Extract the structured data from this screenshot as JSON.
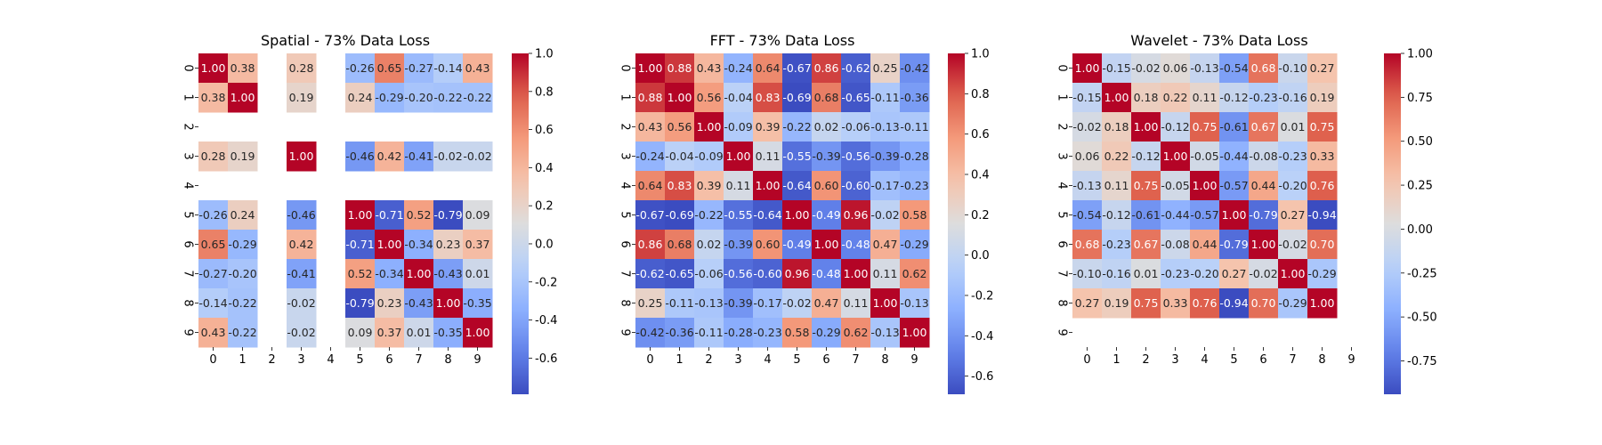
{
  "chart_data": [
    {
      "type": "heatmap",
      "title": "Spatial - 73% Data Loss",
      "xlabel": "",
      "ylabel": "",
      "x_tick_labels": [
        "0",
        "1",
        "2",
        "3",
        "4",
        "5",
        "6",
        "7",
        "8",
        "9"
      ],
      "y_tick_labels": [
        "0",
        "1",
        "2",
        "3",
        "4",
        "5",
        "6",
        "7",
        "8",
        "9"
      ],
      "colormap": "coolwarm",
      "annot_format": "0.00",
      "vmin": -0.79,
      "vmax": 1.0,
      "colorbar_ticks": [
        "-0.6",
        "-0.4",
        "-0.2",
        "0.0",
        "0.2",
        "0.4",
        "0.6",
        "0.8",
        "1.0"
      ],
      "matrix": [
        [
          1.0,
          0.38,
          null,
          0.28,
          null,
          -0.26,
          0.65,
          -0.27,
          -0.14,
          0.43
        ],
        [
          0.38,
          1.0,
          null,
          0.19,
          null,
          0.24,
          -0.29,
          -0.2,
          -0.22,
          -0.22
        ],
        [
          null,
          null,
          null,
          null,
          null,
          null,
          null,
          null,
          null,
          null
        ],
        [
          0.28,
          0.19,
          null,
          1.0,
          null,
          -0.46,
          0.42,
          -0.41,
          -0.02,
          -0.02
        ],
        [
          null,
          null,
          null,
          null,
          null,
          null,
          null,
          null,
          null,
          null
        ],
        [
          -0.26,
          0.24,
          null,
          -0.46,
          null,
          1.0,
          -0.71,
          0.52,
          -0.79,
          0.09
        ],
        [
          0.65,
          -0.29,
          null,
          0.42,
          null,
          -0.71,
          1.0,
          -0.34,
          0.23,
          0.37
        ],
        [
          -0.27,
          -0.2,
          null,
          -0.41,
          null,
          0.52,
          -0.34,
          1.0,
          -0.43,
          0.01
        ],
        [
          -0.14,
          -0.22,
          null,
          -0.02,
          null,
          -0.79,
          0.23,
          -0.43,
          1.0,
          -0.35
        ],
        [
          0.43,
          -0.22,
          null,
          -0.02,
          null,
          0.09,
          0.37,
          0.01,
          -0.35,
          1.0
        ]
      ]
    },
    {
      "type": "heatmap",
      "title": "FFT - 73% Data Loss",
      "xlabel": "",
      "ylabel": "",
      "x_tick_labels": [
        "0",
        "1",
        "2",
        "3",
        "4",
        "5",
        "6",
        "7",
        "8",
        "9"
      ],
      "y_tick_labels": [
        "0",
        "1",
        "2",
        "3",
        "4",
        "5",
        "6",
        "7",
        "8",
        "9"
      ],
      "colormap": "coolwarm",
      "annot_format": "0.00",
      "vmin": -0.69,
      "vmax": 1.0,
      "colorbar_ticks": [
        "-0.6",
        "-0.4",
        "-0.2",
        "0.0",
        "0.2",
        "0.4",
        "0.6",
        "0.8",
        "1.0"
      ],
      "matrix": [
        [
          1.0,
          0.88,
          0.43,
          -0.24,
          0.64,
          -0.67,
          0.86,
          -0.62,
          0.25,
          -0.42
        ],
        [
          0.88,
          1.0,
          0.56,
          -0.04,
          0.83,
          -0.69,
          0.68,
          -0.65,
          -0.11,
          -0.36
        ],
        [
          0.43,
          0.56,
          1.0,
          -0.09,
          0.39,
          -0.22,
          0.02,
          -0.06,
          -0.13,
          -0.11
        ],
        [
          -0.24,
          -0.04,
          -0.09,
          1.0,
          0.11,
          -0.55,
          -0.39,
          -0.56,
          -0.39,
          -0.28
        ],
        [
          0.64,
          0.83,
          0.39,
          0.11,
          1.0,
          -0.64,
          0.6,
          -0.6,
          -0.17,
          -0.23
        ],
        [
          -0.67,
          -0.69,
          -0.22,
          -0.55,
          -0.64,
          1.0,
          -0.49,
          0.96,
          -0.02,
          0.58
        ],
        [
          0.86,
          0.68,
          0.02,
          -0.39,
          0.6,
          -0.49,
          1.0,
          -0.48,
          0.47,
          -0.29
        ],
        [
          -0.62,
          -0.65,
          -0.06,
          -0.56,
          -0.6,
          0.96,
          -0.48,
          1.0,
          0.11,
          0.62
        ],
        [
          0.25,
          -0.11,
          -0.13,
          -0.39,
          -0.17,
          -0.02,
          0.47,
          0.11,
          1.0,
          -0.13
        ],
        [
          -0.42,
          -0.36,
          -0.11,
          -0.28,
          -0.23,
          0.58,
          -0.29,
          0.62,
          -0.13,
          1.0
        ]
      ]
    },
    {
      "type": "heatmap",
      "title": "Wavelet - 73% Data Loss",
      "xlabel": "",
      "ylabel": "",
      "x_tick_labels": [
        "0",
        "1",
        "2",
        "3",
        "4",
        "5",
        "6",
        "7",
        "8",
        "9"
      ],
      "y_tick_labels": [
        "0",
        "1",
        "2",
        "3",
        "4",
        "5",
        "6",
        "7",
        "8",
        "9"
      ],
      "colormap": "coolwarm",
      "annot_format": "0.00",
      "vmin": -0.94,
      "vmax": 1.0,
      "colorbar_ticks": [
        "-0.75",
        "-0.50",
        "-0.25",
        "0.00",
        "0.25",
        "0.50",
        "0.75",
        "1.00"
      ],
      "matrix": [
        [
          1.0,
          -0.15,
          -0.02,
          0.06,
          -0.13,
          -0.54,
          0.68,
          -0.1,
          0.27,
          null
        ],
        [
          -0.15,
          1.0,
          0.18,
          0.22,
          0.11,
          -0.12,
          -0.23,
          -0.16,
          0.19,
          null
        ],
        [
          -0.02,
          0.18,
          1.0,
          -0.12,
          0.75,
          -0.61,
          0.67,
          0.01,
          0.75,
          null
        ],
        [
          0.06,
          0.22,
          -0.12,
          1.0,
          -0.05,
          -0.44,
          -0.08,
          -0.23,
          0.33,
          null
        ],
        [
          -0.13,
          0.11,
          0.75,
          -0.05,
          1.0,
          -0.57,
          0.44,
          -0.2,
          0.76,
          null
        ],
        [
          -0.54,
          -0.12,
          -0.61,
          -0.44,
          -0.57,
          1.0,
          -0.79,
          0.27,
          -0.94,
          null
        ],
        [
          0.68,
          -0.23,
          0.67,
          -0.08,
          0.44,
          -0.79,
          1.0,
          -0.02,
          0.7,
          null
        ],
        [
          -0.1,
          -0.16,
          0.01,
          -0.23,
          -0.2,
          0.27,
          -0.02,
          1.0,
          -0.29,
          null
        ],
        [
          0.27,
          0.19,
          0.75,
          0.33,
          0.76,
          -0.94,
          0.7,
          -0.29,
          1.0,
          null
        ],
        [
          null,
          null,
          null,
          null,
          null,
          null,
          null,
          null,
          null,
          null
        ]
      ]
    }
  ]
}
